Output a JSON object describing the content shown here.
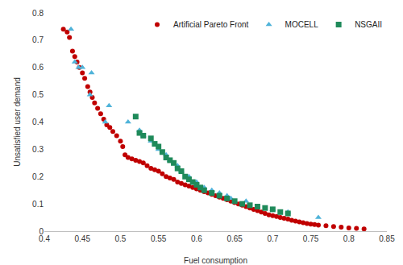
{
  "chart_data": {
    "type": "scatter",
    "x_label": "Fuel consumption",
    "y_label": "Unsatisfied user demand",
    "xlim": [
      0.4,
      0.85
    ],
    "xticks": [
      0.4,
      0.45,
      0.5,
      0.55,
      0.6,
      0.65,
      0.7,
      0.75,
      0.8,
      0.85
    ],
    "ylim": [
      0,
      0.8
    ],
    "yticks": [
      0,
      0.1,
      0.2,
      0.3,
      0.4,
      0.5,
      0.6,
      0.7,
      0.8
    ],
    "grid": false,
    "legend": "top right",
    "series": [
      {
        "name": "Artificial Pareto Front",
        "color": "#c00000",
        "marker": "circle",
        "x": [
          0.425,
          0.43,
          0.433,
          0.437,
          0.44,
          0.443,
          0.446,
          0.45,
          0.453,
          0.457,
          0.46,
          0.463,
          0.466,
          0.47,
          0.474,
          0.478,
          0.482,
          0.486,
          0.49,
          0.495,
          0.5,
          0.503,
          0.506,
          0.51,
          0.515,
          0.52,
          0.525,
          0.53,
          0.535,
          0.54,
          0.545,
          0.55,
          0.555,
          0.56,
          0.565,
          0.57,
          0.575,
          0.58,
          0.585,
          0.59,
          0.595,
          0.6,
          0.605,
          0.61,
          0.615,
          0.62,
          0.625,
          0.63,
          0.635,
          0.64,
          0.645,
          0.65,
          0.655,
          0.66,
          0.665,
          0.67,
          0.675,
          0.68,
          0.685,
          0.69,
          0.695,
          0.7,
          0.705,
          0.71,
          0.715,
          0.72,
          0.725,
          0.73,
          0.735,
          0.74,
          0.745,
          0.75,
          0.755,
          0.76,
          0.77,
          0.78,
          0.79,
          0.8,
          0.81,
          0.82
        ],
        "values": [
          0.74,
          0.73,
          0.71,
          0.66,
          0.64,
          0.62,
          0.6,
          0.58,
          0.56,
          0.53,
          0.51,
          0.49,
          0.47,
          0.45,
          0.43,
          0.41,
          0.39,
          0.38,
          0.365,
          0.35,
          0.33,
          0.31,
          0.28,
          0.27,
          0.265,
          0.26,
          0.255,
          0.25,
          0.24,
          0.23,
          0.225,
          0.22,
          0.21,
          0.2,
          0.195,
          0.19,
          0.18,
          0.175,
          0.17,
          0.165,
          0.16,
          0.155,
          0.15,
          0.145,
          0.14,
          0.135,
          0.13,
          0.125,
          0.12,
          0.115,
          0.11,
          0.105,
          0.1,
          0.095,
          0.09,
          0.085,
          0.08,
          0.075,
          0.07,
          0.065,
          0.06,
          0.057,
          0.054,
          0.05,
          0.047,
          0.044,
          0.04,
          0.037,
          0.034,
          0.031,
          0.028,
          0.026,
          0.024,
          0.022,
          0.02,
          0.017,
          0.015,
          0.012,
          0.01,
          0.008
        ]
      },
      {
        "name": "MOCELL",
        "color": "#4fb3d9",
        "marker": "triangle-up",
        "x": [
          0.435,
          0.44,
          0.445,
          0.45,
          0.462,
          0.46,
          0.485,
          0.48,
          0.51,
          0.525,
          0.53,
          0.54,
          0.55,
          0.56,
          0.565,
          0.575,
          0.58,
          0.59,
          0.6,
          0.61,
          0.62,
          0.63,
          0.64,
          0.645,
          0.665,
          0.68,
          0.7,
          0.72,
          0.76
        ],
        "values": [
          0.74,
          0.62,
          0.6,
          0.6,
          0.58,
          0.5,
          0.46,
          0.4,
          0.4,
          0.37,
          0.35,
          0.33,
          0.3,
          0.28,
          0.26,
          0.24,
          0.22,
          0.2,
          0.18,
          0.16,
          0.15,
          0.14,
          0.13,
          0.12,
          0.11,
          0.09,
          0.08,
          0.07,
          0.05
        ]
      },
      {
        "name": "NSGAII",
        "color": "#1f8a5a",
        "marker": "square",
        "x": [
          0.52,
          0.525,
          0.53,
          0.54,
          0.545,
          0.55,
          0.555,
          0.56,
          0.565,
          0.57,
          0.575,
          0.58,
          0.585,
          0.59,
          0.595,
          0.6,
          0.605,
          0.61,
          0.62,
          0.63,
          0.64,
          0.65,
          0.66,
          0.67,
          0.68,
          0.69,
          0.7,
          0.71,
          0.72
        ],
        "values": [
          0.42,
          0.36,
          0.35,
          0.34,
          0.32,
          0.31,
          0.29,
          0.27,
          0.26,
          0.25,
          0.23,
          0.22,
          0.2,
          0.19,
          0.18,
          0.17,
          0.16,
          0.15,
          0.14,
          0.13,
          0.12,
          0.11,
          0.1,
          0.095,
          0.09,
          0.085,
          0.08,
          0.07,
          0.065
        ]
      }
    ]
  }
}
